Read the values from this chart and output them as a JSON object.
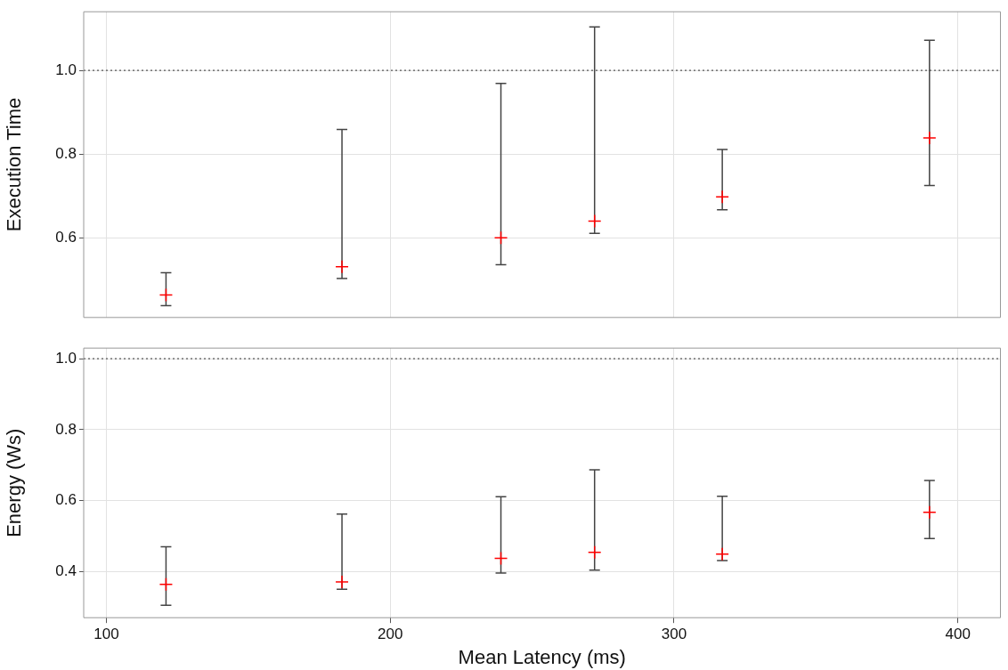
{
  "chart_data": [
    {
      "type": "scatter",
      "ylabel": "Execution Time",
      "x": [
        121,
        183,
        239,
        272,
        317,
        390
      ],
      "xlim": [
        92,
        415
      ],
      "xticks": [
        100,
        200,
        300,
        400
      ],
      "ylim": [
        0.41,
        1.14
      ],
      "yticks": [
        {
          "value": 0.6,
          "label": "0.6"
        },
        {
          "value": 0.8,
          "label": "0.8"
        },
        {
          "value": 1,
          "label": "1.0"
        }
      ],
      "tick_labels": "y",
      "grid": true,
      "marker": "cross",
      "series": [
        {
          "color": "#ff0000",
          "values": [
            0.464,
            0.531,
            0.6,
            0.64,
            0.698,
            0.839
          ],
          "errors": [
            [
              0.438,
              0.517
            ],
            [
              0.503,
              0.859
            ],
            [
              0.536,
              0.969
            ],
            [
              0.611,
              1.104
            ],
            [
              0.667,
              0.811
            ],
            [
              0.725,
              1.072
            ]
          ]
        }
      ],
      "ref_lines": [
        {
          "axis": "y",
          "value": 1.0,
          "line_style": "dotted",
          "color": "#555555"
        }
      ]
    },
    {
      "type": "scatter",
      "ylabel": "Energy (Ws)",
      "xlabel": "Mean Latency (ms)",
      "x": [
        121,
        183,
        239,
        272,
        317,
        390
      ],
      "xlim": [
        92,
        415
      ],
      "xticks": [
        100,
        200,
        300,
        400
      ],
      "ylim": [
        0.27,
        1.03
      ],
      "yticks": [
        {
          "value": 0.4,
          "label": "0.4"
        },
        {
          "value": 0.6,
          "label": "0.6"
        },
        {
          "value": 0.8,
          "label": "0.8"
        },
        {
          "value": 1,
          "label": "1.0"
        }
      ],
      "grid": true,
      "marker": "cross",
      "series": [
        {
          "color": "#ff0000",
          "values": [
            0.364,
            0.371,
            0.437,
            0.454,
            0.449,
            0.567
          ],
          "errors": [
            [
              0.305,
              0.47
            ],
            [
              0.35,
              0.562
            ],
            [
              0.396,
              0.611
            ],
            [
              0.404,
              0.687
            ],
            [
              0.431,
              0.612
            ],
            [
              0.493,
              0.657
            ]
          ]
        }
      ],
      "ref_lines": [
        {
          "axis": "y",
          "value": 1.0,
          "line_style": "dotted",
          "color": "#555555"
        }
      ]
    }
  ]
}
